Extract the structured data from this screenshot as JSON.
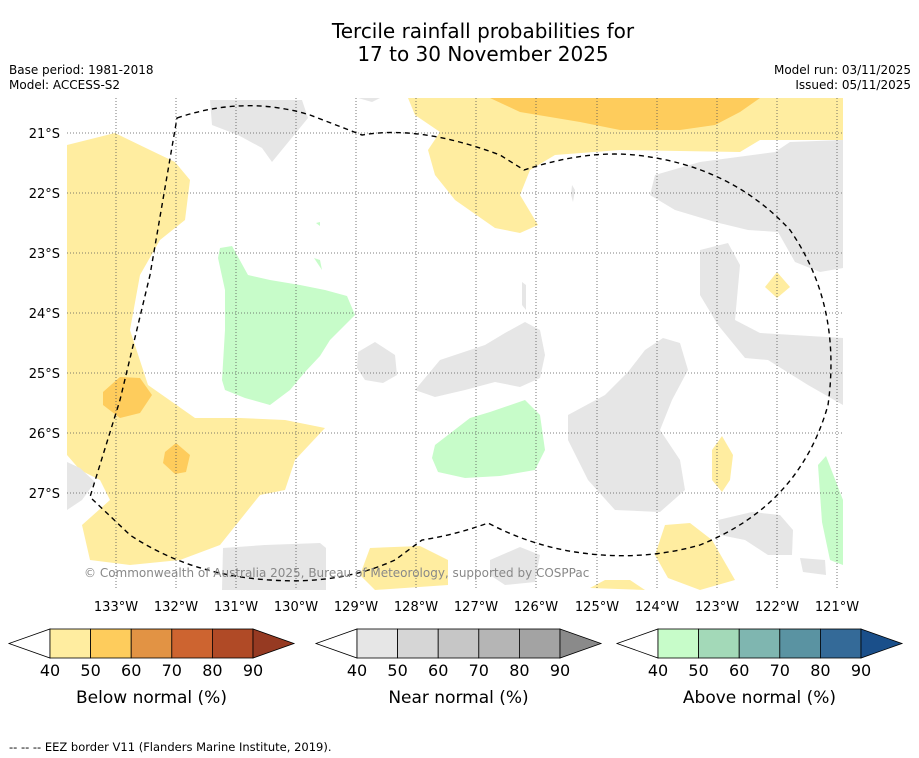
{
  "header": {
    "title_line1": "Tercile rainfall probabilities for",
    "title_line2": "17 to 30 November 2025",
    "base_period": "Base period: 1981-2018",
    "model": "Model: ACCESS-S2",
    "model_run": "Model run: 03/11/2025",
    "issued": "Issued: 05/11/2025"
  },
  "map": {
    "lat_labels": [
      "21°S",
      "22°S",
      "23°S",
      "24°S",
      "25°S",
      "26°S",
      "27°S"
    ],
    "lon_labels": [
      "133°W",
      "132°W",
      "131°W",
      "130°W",
      "129°W",
      "128°W",
      "127°W",
      "126°W",
      "125°W",
      "124°W",
      "123°W",
      "122°W",
      "121°W"
    ],
    "copyright": "© Commonwealth of Australia 2025, Bureau of Meteorology, supported by COSPPac"
  },
  "legends": [
    {
      "title": "Below normal (%)",
      "ticks": [
        "40",
        "50",
        "60",
        "70",
        "80",
        "90"
      ],
      "colors": [
        "#ffeda0",
        "#fecc5c",
        "#e29344",
        "#cd6430",
        "#b04a26",
        "#963a22"
      ]
    },
    {
      "title": "Near normal (%)",
      "ticks": [
        "40",
        "50",
        "60",
        "70",
        "80",
        "90"
      ],
      "colors": [
        "#e6e6e6",
        "#d6d6d6",
        "#c6c6c6",
        "#b5b5b5",
        "#a3a3a3",
        "#8a8a8a"
      ]
    },
    {
      "title": "Above normal (%)",
      "ticks": [
        "40",
        "50",
        "60",
        "70",
        "80",
        "90"
      ],
      "colors": [
        "#c7fcc9",
        "#a3d9b8",
        "#7fb6b0",
        "#5a93a2",
        "#346a98",
        "#1a4f8a"
      ]
    }
  ],
  "footer": {
    "eez": "--  --  -- EEZ border V11 (Flanders Marine Institute, 2019)."
  }
}
